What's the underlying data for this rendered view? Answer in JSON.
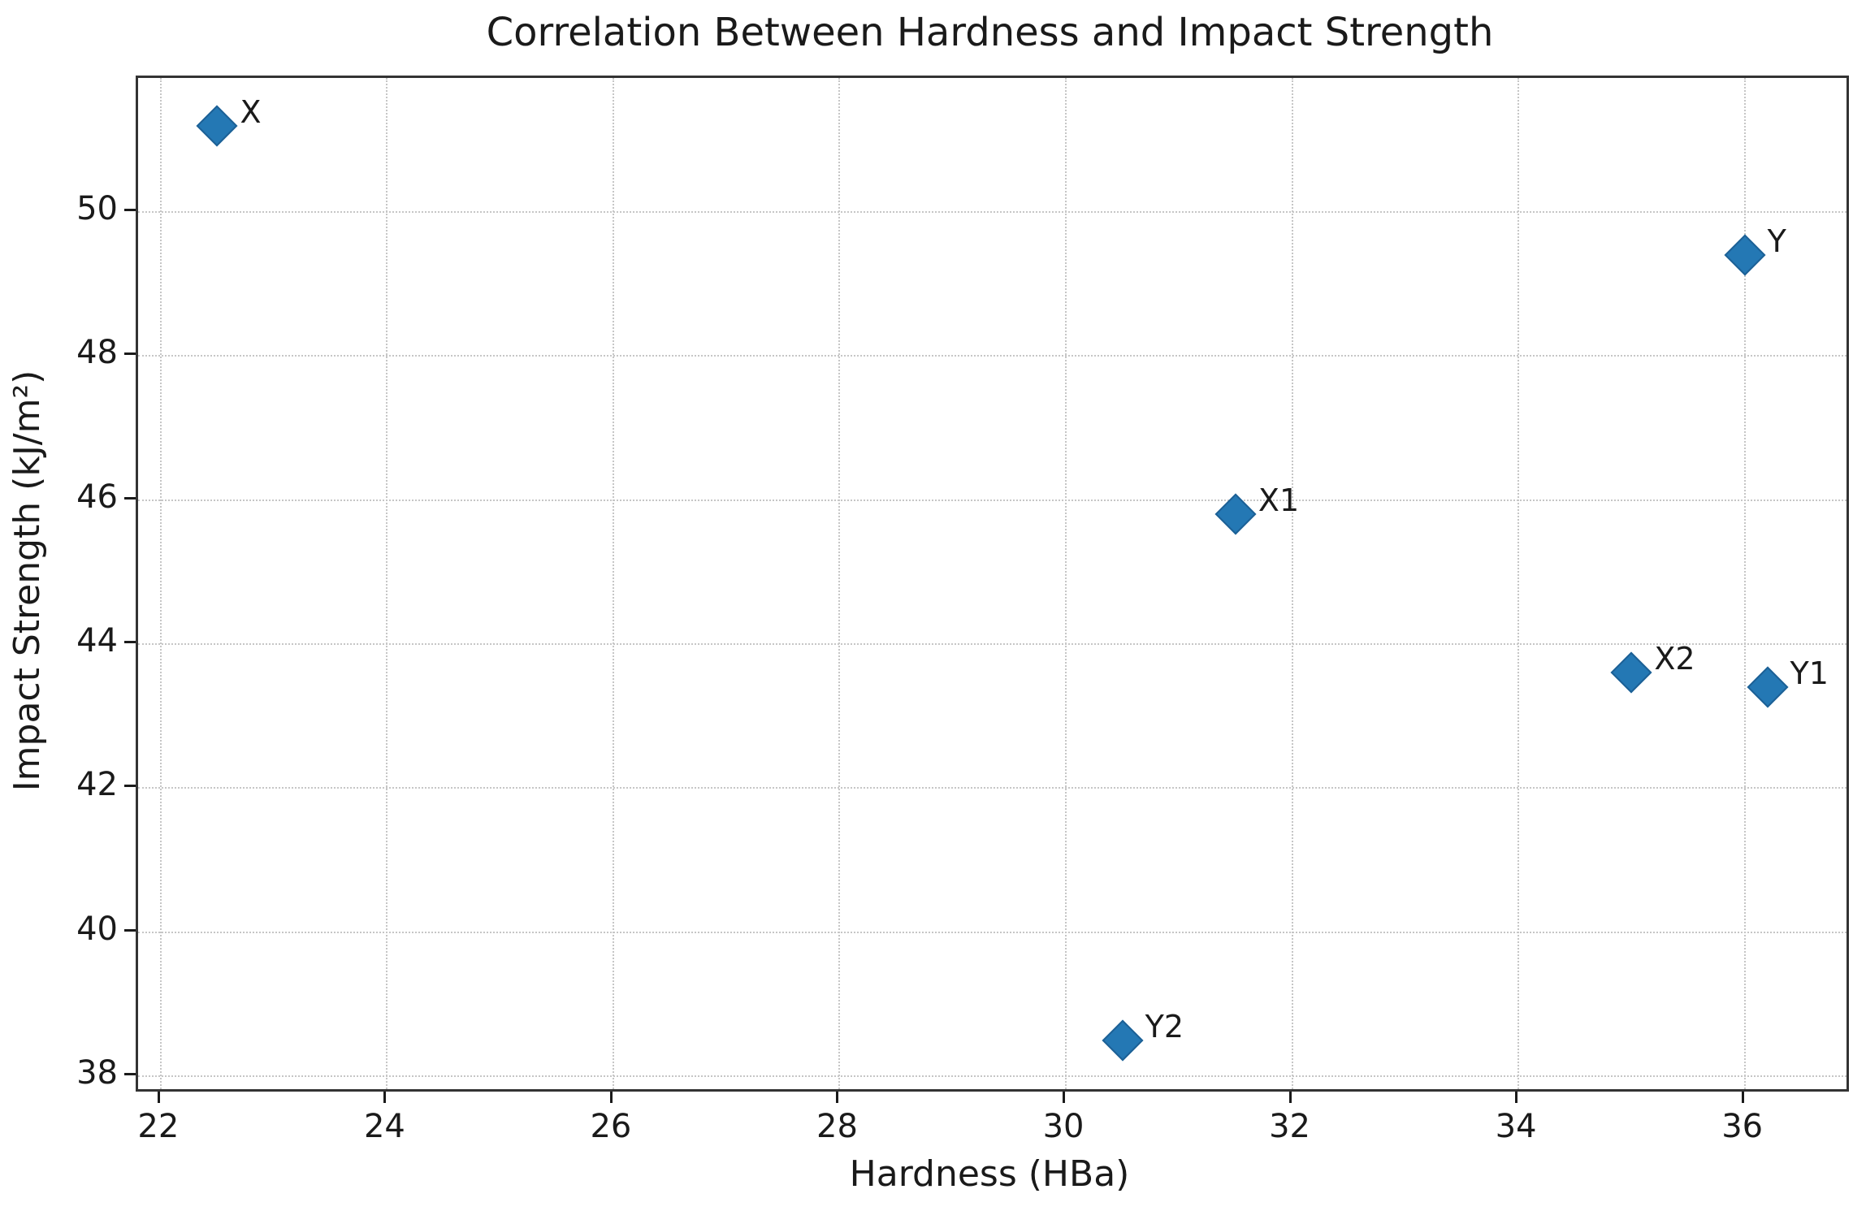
{
  "title": "Correlation Between Hardness and Impact Strength",
  "chart_data": {
    "type": "scatter",
    "title": "Correlation Between Hardness and Impact Strength",
    "xlabel": "Hardness (HBa)",
    "ylabel": "Impact Strength (kJ/m²)",
    "xlim": [
      21.8,
      36.9
    ],
    "ylim": [
      37.82,
      51.86
    ],
    "xticks": [
      22,
      24,
      26,
      28,
      30,
      32,
      34,
      36
    ],
    "yticks": [
      38,
      40,
      42,
      44,
      46,
      48,
      50
    ],
    "grid": true,
    "grid_style": "dotted",
    "legend": false,
    "marker_shape": "diamond",
    "points": [
      {
        "label": "X",
        "x": 22.5,
        "y": 51.2
      },
      {
        "label": "Y",
        "x": 36.0,
        "y": 49.4
      },
      {
        "label": "X1",
        "x": 31.5,
        "y": 45.8
      },
      {
        "label": "X2",
        "x": 35.0,
        "y": 43.6
      },
      {
        "label": "Y1",
        "x": 36.2,
        "y": 43.4
      },
      {
        "label": "Y2",
        "x": 30.5,
        "y": 38.5
      }
    ],
    "colors": {
      "marker_fill": "#2478b4",
      "marker_edge": "#1d6196",
      "grid": "#c6c6c6",
      "axis": "#333333",
      "text": "#1a1a1a"
    }
  }
}
